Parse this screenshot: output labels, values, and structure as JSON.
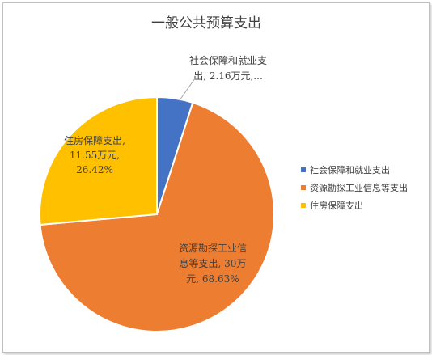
{
  "chart_data": {
    "type": "pie",
    "title": "一般公共预算支出",
    "unit": "万元",
    "legend_position": "right",
    "categories": [
      "社会保障和就业支出",
      "资源勘探工业信息等支出",
      "住房保障支出"
    ],
    "values": [
      2.16,
      30,
      11.55
    ],
    "percents": [
      "4.94%",
      "68.63%",
      "26.42%"
    ],
    "colors": [
      "#4472C4",
      "#ED7D31",
      "#FFC000"
    ],
    "data_labels": [
      [
        "社会保障和就业支",
        "出, 2.16万元,..."
      ],
      [
        "资源勘探工业信",
        "息等支出, 30万",
        "元, 68.63%"
      ],
      [
        "住房保障支出,",
        "11.55万元,",
        "26.42%"
      ]
    ],
    "legend": [
      "社会保障和就业支出",
      "资源勘探工业信息等支出",
      "住房保障支出"
    ]
  }
}
